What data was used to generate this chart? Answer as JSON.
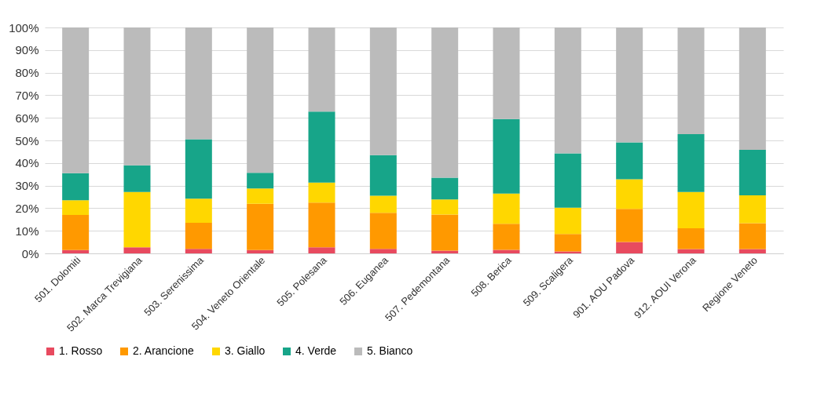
{
  "chart_data": {
    "type": "bar",
    "stacked": true,
    "categories": [
      "501. Dolomiti",
      "502. Marca Trevigiana",
      "503. Serenissima",
      "504. Veneto Orientale",
      "505. Polesana",
      "506. Euganea",
      "507. Pedemontana",
      "508. Berica",
      "509. Scaligera",
      "901. AOU Padova",
      "912. AOUI Verona",
      "Regione Veneto"
    ],
    "series": [
      {
        "name": "1. Rosso",
        "color": "#e84a5f",
        "values": [
          1.5,
          2.7,
          2,
          1.5,
          2.7,
          2,
          1.2,
          1.6,
          0.9,
          5,
          1.9,
          1.9
        ]
      },
      {
        "name": "2. Arancione",
        "color": "#ff9900",
        "values": [
          15.5,
          0,
          11.5,
          20.5,
          19.8,
          16,
          16,
          11.5,
          7.7,
          14.7,
          9.2,
          11.5
        ]
      },
      {
        "name": "3. Giallo",
        "color": "#ffd700",
        "values": [
          6.5,
          24.5,
          10.7,
          6.7,
          8.8,
          7.5,
          6.7,
          13.4,
          11.6,
          13.1,
          16.1,
          12.3
        ]
      },
      {
        "name": "4. Verde",
        "color": "#17a589",
        "values": [
          12,
          11.8,
          26.3,
          7,
          31.5,
          18,
          9.6,
          33,
          24.1,
          16.3,
          25.6,
          20.1
        ]
      },
      {
        "name": "5. Bianco",
        "color": "#bbbbbb",
        "values": [
          64.5,
          61,
          49.5,
          64.3,
          37.2,
          56.5,
          66.5,
          40.5,
          55.7,
          50.9,
          47.2,
          54.2
        ]
      }
    ],
    "ylim": [
      0,
      100
    ],
    "yticks": [
      {
        "value": 0,
        "label": "0%"
      },
      {
        "value": 10,
        "label": "10%"
      },
      {
        "value": 20,
        "label": "20%"
      },
      {
        "value": 30,
        "label": "30%"
      },
      {
        "value": 40,
        "label": "40%"
      },
      {
        "value": 50,
        "label": "50%"
      },
      {
        "value": 60,
        "label": "60%"
      },
      {
        "value": 70,
        "label": "70%"
      },
      {
        "value": 80,
        "label": "80%"
      },
      {
        "value": 90,
        "label": "90%"
      },
      {
        "value": 100,
        "label": "100%"
      }
    ],
    "grid": "y",
    "legend": "bottom"
  }
}
